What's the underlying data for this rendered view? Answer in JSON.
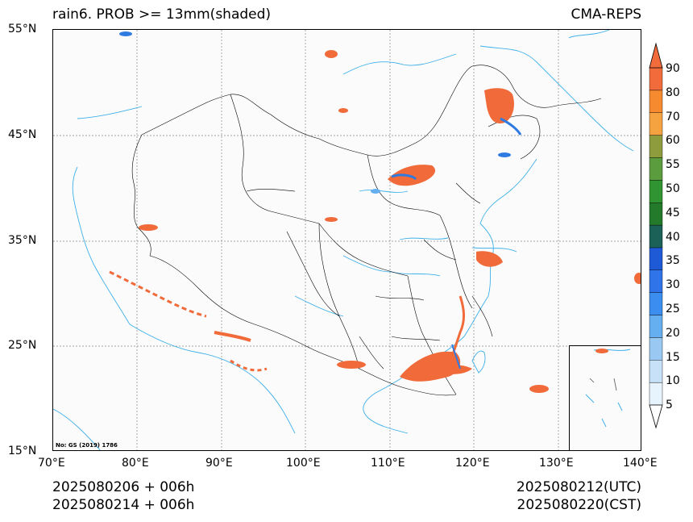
{
  "title_left": "rain6. PROB >= 13mm(shaded)",
  "title_right": "CMA-REPS",
  "map_note": "No: GS (2019) 1786",
  "lat_labels": [
    "55°N",
    "45°N",
    "35°N",
    "25°N",
    "15°N"
  ],
  "lon_labels": [
    "70°E",
    "80°E",
    "90°E",
    "100°E",
    "110°E",
    "120°E",
    "130°E",
    "140°E"
  ],
  "footer": {
    "left_line1": "2025080206  +  006h",
    "left_line2": "2025080214  +  006h",
    "right_line1": "2025080212(UTC)",
    "right_line2": "2025080220(CST)"
  },
  "colorbar": {
    "ticks": [
      "90",
      "80",
      "70",
      "60",
      "55",
      "50",
      "45",
      "40",
      "35",
      "30",
      "25",
      "20",
      "15",
      "10",
      "5"
    ],
    "colors": [
      "#e8f4fd",
      "#c6e1f8",
      "#99c9f2",
      "#65aef0",
      "#3b8ef0",
      "#2f74e8",
      "#1f5ad6",
      "#1c6158",
      "#227a2a",
      "#2f9431",
      "#5a9c3e",
      "#8f9c3e",
      "#f5a341",
      "#f58a2f",
      "#f26b3a"
    ]
  },
  "colors": {
    "precip_orange": "#f06a3a",
    "precip_blue": "#2f7ae0",
    "river": "#3fb0e8",
    "border": "#000000"
  }
}
